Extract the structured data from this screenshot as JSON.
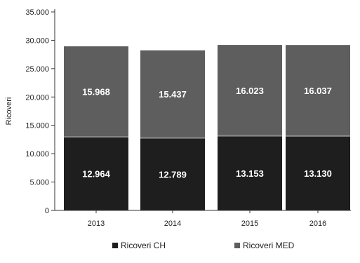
{
  "chart_data": {
    "type": "bar",
    "stacked": true,
    "categories": [
      "2013",
      "2014",
      "2015",
      "2016"
    ],
    "series": [
      {
        "name": "Ricoveri CH",
        "values": [
          12964,
          12789,
          13153,
          13130
        ],
        "labels": [
          "12.964",
          "12.789",
          "13.153",
          "13.130"
        ],
        "color": "#1e1e1e"
      },
      {
        "name": "Ricoveri MED",
        "values": [
          15968,
          15437,
          16023,
          16037
        ],
        "labels": [
          "15.968",
          "15.437",
          "16.023",
          "16.037"
        ],
        "color": "#5e5e5e"
      }
    ],
    "ylabel": "Ricoveri",
    "ylim": [
      0,
      35000
    ],
    "yticks": [
      0,
      5000,
      10000,
      15000,
      20000,
      25000,
      30000,
      35000
    ],
    "ytick_labels": [
      "0",
      "5.000",
      "10.000",
      "15.000",
      "20.000",
      "25.000",
      "30.000",
      "35.000"
    ],
    "grid": false,
    "legend_position": "bottom",
    "background_color": "#ffffff",
    "axis_color": "#333333"
  }
}
